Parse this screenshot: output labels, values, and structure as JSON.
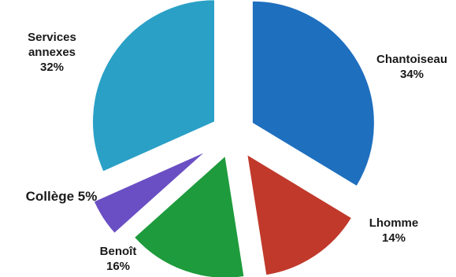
{
  "chart_data": {
    "type": "pie",
    "exploded": true,
    "legend": "none",
    "slices": [
      {
        "label": "Chantoiseau",
        "value": 34,
        "display": "34%",
        "color": "#1f6fbf"
      },
      {
        "label": "Lhomme",
        "value": 14,
        "display": "14%",
        "color": "#c0392b"
      },
      {
        "label": "Benoît",
        "value": 16,
        "display": "16%",
        "color": "#1e9b3c"
      },
      {
        "label": "Collège",
        "value": 5,
        "display": "5%",
        "color": "#6a4fc4"
      },
      {
        "label": "Services annexes",
        "label_lines": [
          "Services",
          "annexes"
        ],
        "value": 32,
        "display": "32%",
        "color": "#2aa0c6"
      }
    ]
  }
}
